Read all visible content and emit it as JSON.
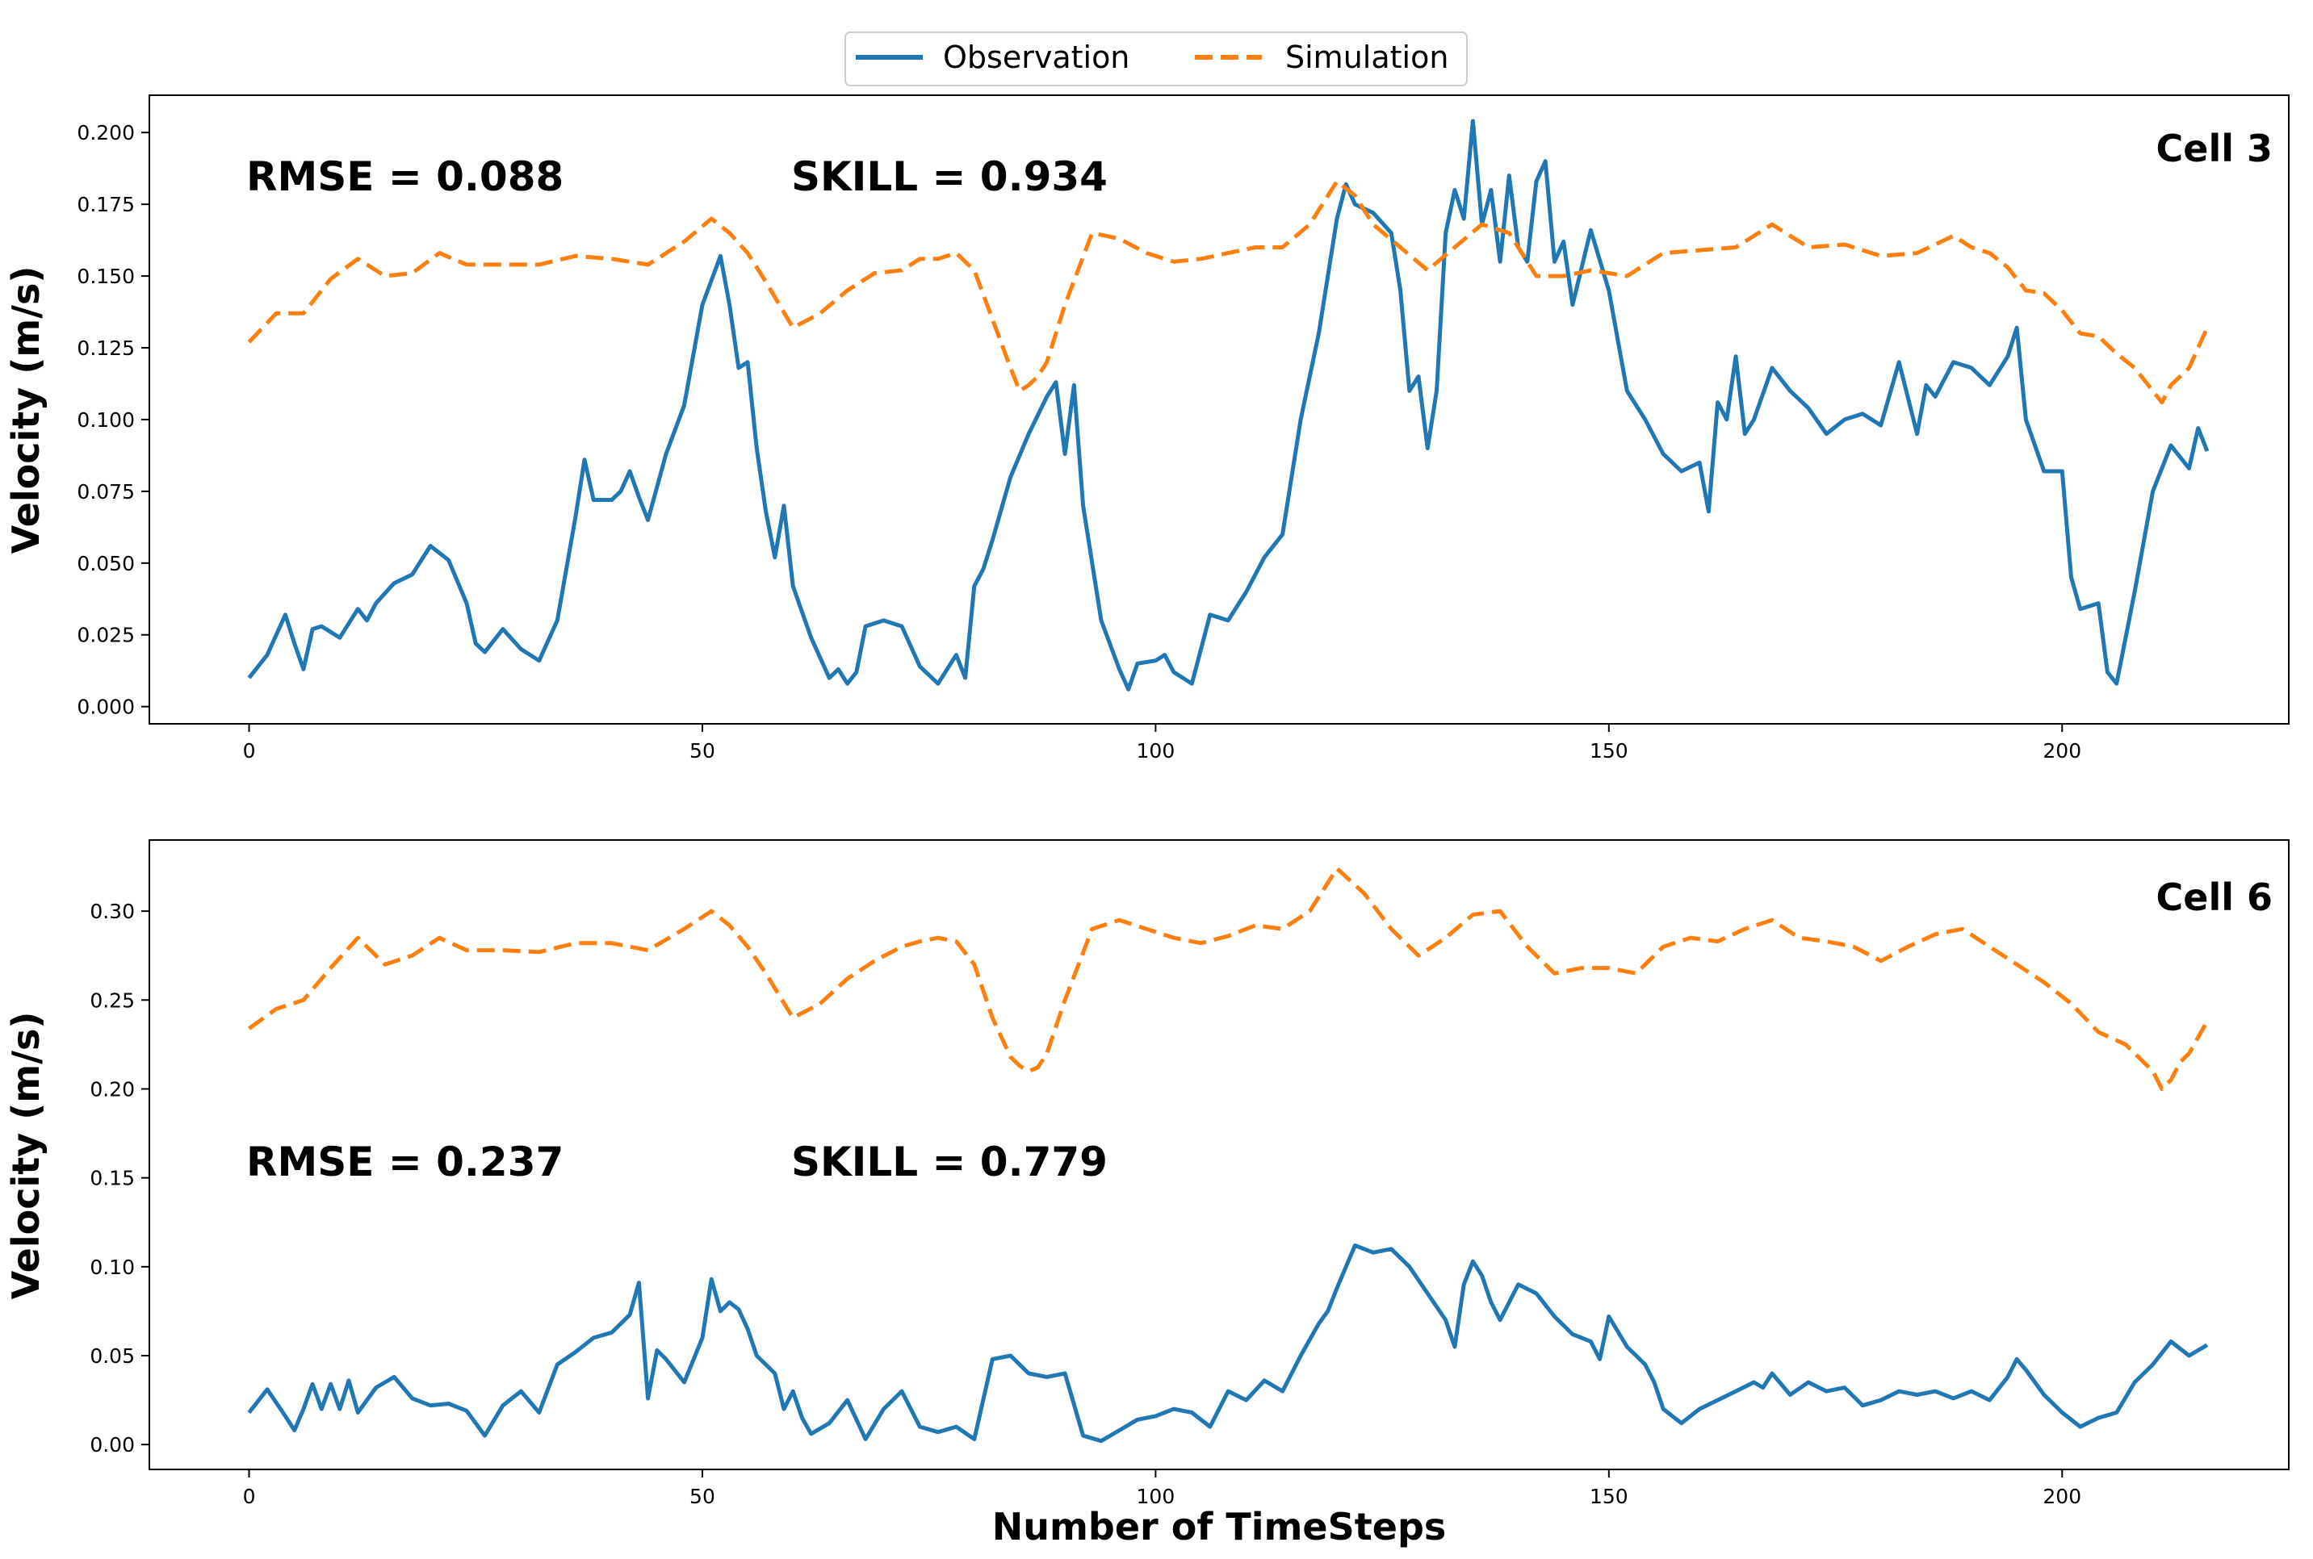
{
  "legend": {
    "observation_label": "Observation",
    "simulation_label": "Simulation"
  },
  "colors": {
    "observation": "#1f77b4",
    "simulation": "#ff7f0e"
  },
  "chart_data": [
    {
      "type": "line",
      "title": "Cell 3",
      "xlabel": "",
      "ylabel": "Velocity (m/s)",
      "xlim": [
        -11,
        225
      ],
      "ylim": [
        -0.006,
        0.213
      ],
      "xticks": [
        0,
        50,
        100,
        150,
        200
      ],
      "yticks": [
        0.0,
        0.025,
        0.05,
        0.075,
        0.1,
        0.125,
        0.15,
        0.175,
        0.2
      ],
      "ytick_labels": [
        "0.000",
        "0.025",
        "0.050",
        "0.075",
        "0.100",
        "0.125",
        "0.150",
        "0.175",
        "0.200"
      ],
      "xtick_labels": [
        "0",
        "50",
        "100",
        "150",
        "200"
      ],
      "stats": {
        "rmse": "RMSE = 0.088",
        "skill": "SKILL = 0.934"
      },
      "series": [
        {
          "name": "Observation",
          "x": [
            0,
            2,
            4,
            5,
            6,
            7,
            8,
            10,
            12,
            13,
            14,
            16,
            18,
            20,
            22,
            24,
            25,
            26,
            28,
            30,
            32,
            34,
            36,
            37,
            38,
            40,
            41,
            42,
            43,
            44,
            46,
            48,
            50,
            52,
            53,
            54,
            55,
            56,
            57,
            58,
            59,
            60,
            62,
            64,
            65,
            66,
            67,
            68,
            70,
            72,
            74,
            76,
            78,
            79,
            80,
            81,
            82,
            84,
            86,
            88,
            89,
            90,
            91,
            92,
            94,
            96,
            97,
            98,
            100,
            101,
            102,
            104,
            106,
            108,
            110,
            112,
            114,
            116,
            118,
            120,
            121,
            122,
            124,
            126,
            127,
            128,
            129,
            130,
            131,
            132,
            133,
            134,
            135,
            136,
            137,
            138,
            139,
            140,
            141,
            142,
            143,
            144,
            145,
            146,
            148,
            150,
            152,
            154,
            156,
            158,
            160,
            161,
            162,
            163,
            164,
            165,
            166,
            168,
            170,
            172,
            174,
            176,
            178,
            180,
            182,
            184,
            185,
            186,
            188,
            190,
            192,
            194,
            195,
            196,
            198,
            200,
            201,
            202,
            204,
            205,
            206,
            208,
            210,
            212,
            214,
            215,
            216
          ],
          "y": [
            0.01,
            0.018,
            0.032,
            0.022,
            0.013,
            0.027,
            0.028,
            0.024,
            0.034,
            0.03,
            0.036,
            0.043,
            0.046,
            0.056,
            0.051,
            0.036,
            0.022,
            0.019,
            0.027,
            0.02,
            0.016,
            0.03,
            0.066,
            0.086,
            0.072,
            0.072,
            0.075,
            0.082,
            0.073,
            0.065,
            0.088,
            0.105,
            0.14,
            0.157,
            0.14,
            0.118,
            0.12,
            0.09,
            0.068,
            0.052,
            0.07,
            0.042,
            0.024,
            0.01,
            0.013,
            0.008,
            0.012,
            0.028,
            0.03,
            0.028,
            0.014,
            0.008,
            0.018,
            0.01,
            0.042,
            0.048,
            0.058,
            0.08,
            0.095,
            0.108,
            0.113,
            0.088,
            0.112,
            0.07,
            0.03,
            0.013,
            0.006,
            0.015,
            0.016,
            0.018,
            0.012,
            0.008,
            0.032,
            0.03,
            0.04,
            0.052,
            0.06,
            0.1,
            0.13,
            0.17,
            0.182,
            0.175,
            0.172,
            0.165,
            0.145,
            0.11,
            0.115,
            0.09,
            0.11,
            0.165,
            0.18,
            0.17,
            0.204,
            0.168,
            0.18,
            0.155,
            0.185,
            0.16,
            0.155,
            0.183,
            0.19,
            0.155,
            0.162,
            0.14,
            0.166,
            0.145,
            0.11,
            0.1,
            0.088,
            0.082,
            0.085,
            0.068,
            0.106,
            0.1,
            0.122,
            0.095,
            0.1,
            0.118,
            0.11,
            0.104,
            0.095,
            0.1,
            0.102,
            0.098,
            0.12,
            0.095,
            0.112,
            0.108,
            0.12,
            0.118,
            0.112,
            0.122,
            0.132,
            0.1,
            0.082,
            0.082,
            0.045,
            0.034,
            0.036,
            0.012,
            0.008,
            0.04,
            0.075,
            0.091,
            0.083,
            0.097,
            0.089
          ]
        },
        {
          "name": "Simulation",
          "x": [
            0,
            3,
            6,
            9,
            12,
            15,
            18,
            21,
            24,
            28,
            32,
            36,
            40,
            44,
            48,
            51,
            53,
            55,
            57,
            60,
            63,
            66,
            69,
            72,
            74,
            76,
            78,
            80,
            82,
            84,
            85,
            86,
            87,
            88,
            90,
            93,
            96,
            99,
            102,
            105,
            108,
            111,
            114,
            117,
            120,
            122,
            124,
            127,
            130,
            133,
            136,
            139,
            142,
            145,
            148,
            152,
            156,
            160,
            164,
            168,
            172,
            176,
            180,
            184,
            188,
            190,
            192,
            194,
            196,
            198,
            200,
            202,
            204,
            206,
            208,
            210,
            211,
            212,
            213,
            214,
            216
          ],
          "y": [
            0.127,
            0.137,
            0.137,
            0.149,
            0.156,
            0.15,
            0.151,
            0.158,
            0.154,
            0.154,
            0.154,
            0.157,
            0.156,
            0.154,
            0.162,
            0.17,
            0.165,
            0.158,
            0.148,
            0.132,
            0.137,
            0.145,
            0.151,
            0.152,
            0.156,
            0.156,
            0.158,
            0.152,
            0.135,
            0.118,
            0.11,
            0.112,
            0.115,
            0.12,
            0.14,
            0.165,
            0.163,
            0.158,
            0.155,
            0.156,
            0.158,
            0.16,
            0.16,
            0.168,
            0.183,
            0.178,
            0.168,
            0.16,
            0.152,
            0.16,
            0.168,
            0.165,
            0.15,
            0.15,
            0.152,
            0.15,
            0.158,
            0.159,
            0.16,
            0.168,
            0.16,
            0.161,
            0.157,
            0.158,
            0.164,
            0.16,
            0.158,
            0.153,
            0.145,
            0.144,
            0.138,
            0.13,
            0.129,
            0.123,
            0.118,
            0.11,
            0.106,
            0.112,
            0.115,
            0.118,
            0.132
          ]
        }
      ]
    },
    {
      "type": "line",
      "title": "Cell 6",
      "xlabel": "Number of TimeSteps",
      "ylabel": "Velocity (m/s)",
      "xlim": [
        -11,
        225
      ],
      "ylim": [
        -0.014,
        0.34
      ],
      "xticks": [
        0,
        50,
        100,
        150,
        200
      ],
      "yticks": [
        0.0,
        0.05,
        0.1,
        0.15,
        0.2,
        0.25,
        0.3
      ],
      "ytick_labels": [
        "0.00",
        "0.05",
        "0.10",
        "0.15",
        "0.20",
        "0.25",
        "0.30"
      ],
      "xtick_labels": [
        "0",
        "50",
        "100",
        "150",
        "200"
      ],
      "stats": {
        "rmse": "RMSE = 0.237",
        "skill": "SKILL = 0.779"
      },
      "series": [
        {
          "name": "Observation",
          "x": [
            0,
            2,
            4,
            5,
            6,
            7,
            8,
            9,
            10,
            11,
            12,
            14,
            16,
            18,
            20,
            22,
            24,
            26,
            28,
            30,
            32,
            34,
            36,
            38,
            40,
            41,
            42,
            43,
            44,
            45,
            46,
            48,
            50,
            51,
            52,
            53,
            54,
            55,
            56,
            58,
            59,
            60,
            61,
            62,
            64,
            66,
            68,
            70,
            72,
            74,
            76,
            78,
            80,
            82,
            84,
            86,
            88,
            90,
            92,
            94,
            96,
            98,
            100,
            102,
            104,
            106,
            108,
            110,
            112,
            114,
            116,
            118,
            119,
            120,
            121,
            122,
            124,
            126,
            128,
            130,
            132,
            133,
            134,
            135,
            136,
            137,
            138,
            140,
            142,
            144,
            146,
            148,
            149,
            150,
            152,
            154,
            155,
            156,
            158,
            160,
            162,
            164,
            166,
            167,
            168,
            170,
            172,
            174,
            176,
            178,
            180,
            182,
            184,
            186,
            188,
            190,
            192,
            194,
            195,
            196,
            198,
            200,
            202,
            204,
            206,
            208,
            210,
            212,
            214,
            216
          ],
          "y": [
            0.018,
            0.031,
            0.016,
            0.008,
            0.02,
            0.034,
            0.02,
            0.034,
            0.02,
            0.036,
            0.018,
            0.032,
            0.038,
            0.026,
            0.022,
            0.023,
            0.019,
            0.005,
            0.022,
            0.03,
            0.018,
            0.045,
            0.052,
            0.06,
            0.063,
            0.068,
            0.073,
            0.091,
            0.026,
            0.053,
            0.048,
            0.035,
            0.06,
            0.093,
            0.075,
            0.08,
            0.076,
            0.065,
            0.05,
            0.04,
            0.02,
            0.03,
            0.015,
            0.006,
            0.012,
            0.025,
            0.003,
            0.02,
            0.03,
            0.01,
            0.007,
            0.01,
            0.003,
            0.048,
            0.05,
            0.04,
            0.038,
            0.04,
            0.005,
            0.002,
            0.008,
            0.014,
            0.016,
            0.02,
            0.018,
            0.01,
            0.03,
            0.025,
            0.036,
            0.03,
            0.05,
            0.068,
            0.075,
            0.088,
            0.1,
            0.112,
            0.108,
            0.11,
            0.1,
            0.085,
            0.07,
            0.055,
            0.09,
            0.103,
            0.095,
            0.08,
            0.07,
            0.09,
            0.085,
            0.072,
            0.062,
            0.058,
            0.048,
            0.072,
            0.055,
            0.045,
            0.035,
            0.02,
            0.012,
            0.02,
            0.025,
            0.03,
            0.035,
            0.032,
            0.04,
            0.028,
            0.035,
            0.03,
            0.032,
            0.022,
            0.025,
            0.03,
            0.028,
            0.03,
            0.026,
            0.03,
            0.025,
            0.038,
            0.048,
            0.042,
            0.028,
            0.018,
            0.01,
            0.015,
            0.018,
            0.035,
            0.045,
            0.058,
            0.05,
            0.056
          ]
        },
        {
          "name": "Simulation",
          "x": [
            0,
            3,
            6,
            9,
            12,
            15,
            18,
            21,
            24,
            28,
            32,
            36,
            40,
            44,
            48,
            51,
            53,
            55,
            57,
            60,
            63,
            66,
            69,
            72,
            74,
            76,
            78,
            80,
            82,
            84,
            85,
            86,
            87,
            88,
            90,
            93,
            96,
            99,
            102,
            105,
            108,
            111,
            114,
            117,
            120,
            123,
            126,
            129,
            132,
            135,
            138,
            141,
            144,
            147,
            150,
            153,
            156,
            159,
            162,
            165,
            168,
            171,
            174,
            177,
            180,
            183,
            186,
            189,
            192,
            195,
            198,
            201,
            204,
            207,
            210,
            211,
            212,
            213,
            214,
            216
          ],
          "y": [
            0.234,
            0.245,
            0.25,
            0.268,
            0.285,
            0.27,
            0.275,
            0.285,
            0.278,
            0.278,
            0.277,
            0.282,
            0.282,
            0.278,
            0.29,
            0.3,
            0.292,
            0.28,
            0.265,
            0.24,
            0.248,
            0.262,
            0.272,
            0.28,
            0.283,
            0.285,
            0.283,
            0.27,
            0.24,
            0.218,
            0.213,
            0.21,
            0.212,
            0.22,
            0.25,
            0.29,
            0.295,
            0.29,
            0.285,
            0.282,
            0.286,
            0.292,
            0.29,
            0.3,
            0.324,
            0.31,
            0.29,
            0.275,
            0.285,
            0.298,
            0.3,
            0.28,
            0.265,
            0.268,
            0.268,
            0.265,
            0.28,
            0.285,
            0.283,
            0.29,
            0.295,
            0.285,
            0.283,
            0.28,
            0.272,
            0.28,
            0.287,
            0.29,
            0.28,
            0.27,
            0.26,
            0.248,
            0.232,
            0.225,
            0.21,
            0.2,
            0.205,
            0.215,
            0.22,
            0.238
          ]
        }
      ]
    }
  ]
}
